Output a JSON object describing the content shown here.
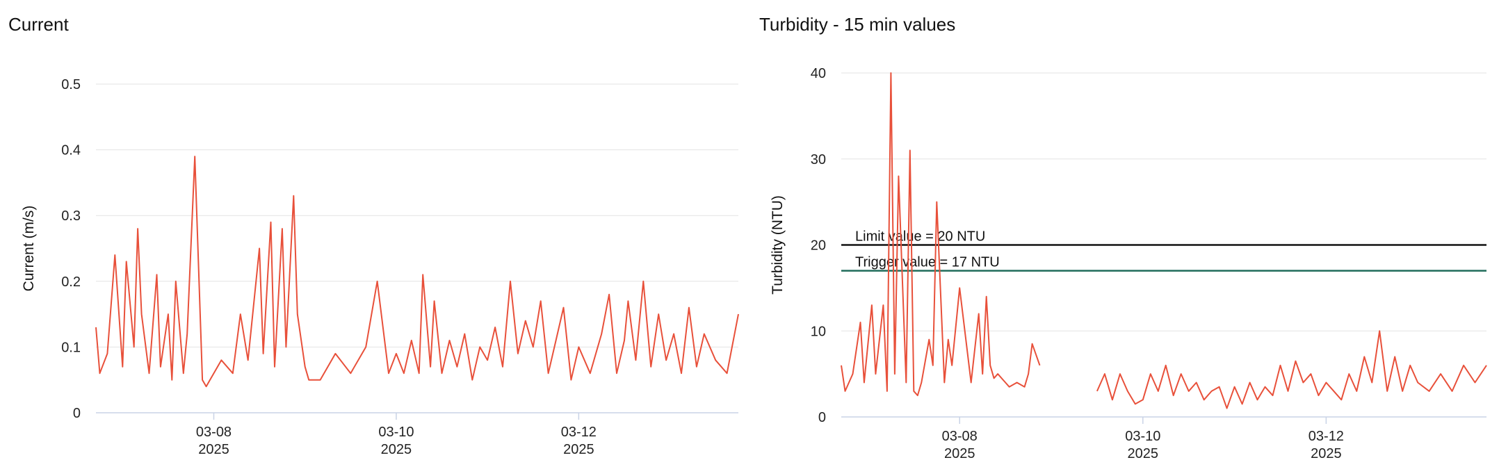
{
  "chart_data": [
    {
      "type": "line",
      "title": "Current",
      "xlabel": "",
      "ylabel": "Current (m/s)",
      "ylim": [
        0,
        0.5
      ],
      "yticks": [
        "0",
        "0.1",
        "0.2",
        "0.3",
        "0.4",
        "0.5"
      ],
      "xlim": [
        "2025-03-06 17:00",
        "2025-03-13 18:00"
      ],
      "xticks": [
        {
          "date": "2025-03-08",
          "label": "03-08",
          "year": "2025"
        },
        {
          "date": "2025-03-10",
          "label": "03-10",
          "year": "2025"
        },
        {
          "date": "2025-03-12",
          "label": "03-12",
          "year": "2025"
        }
      ],
      "grid": true,
      "colors": {
        "line": "#e8503a",
        "grid": "#e3e3e3"
      },
      "series": [
        {
          "x": [
            "2025-03-06 17:00",
            "2025-03-06 18:00",
            "2025-03-06 20:00",
            "2025-03-06 22:00",
            "2025-03-07 00:00",
            "2025-03-07 01:00",
            "2025-03-07 03:00",
            "2025-03-07 04:00",
            "2025-03-07 05:00",
            "2025-03-07 07:00",
            "2025-03-07 09:00",
            "2025-03-07 10:00",
            "2025-03-07 12:00",
            "2025-03-07 13:00",
            "2025-03-07 14:00",
            "2025-03-07 16:00",
            "2025-03-07 17:00",
            "2025-03-07 19:00",
            "2025-03-07 21:00",
            "2025-03-07 22:00",
            "2025-03-07 23:00",
            "2025-03-08 02:00",
            "2025-03-08 05:00",
            "2025-03-08 07:00",
            "2025-03-08 09:00",
            "2025-03-08 12:00",
            "2025-03-08 13:00",
            "2025-03-08 15:00",
            "2025-03-08 16:00",
            "2025-03-08 18:00",
            "2025-03-08 19:00",
            "2025-03-08 21:00",
            "2025-03-08 22:00",
            "2025-03-09 00:00",
            "2025-03-09 01:00",
            "2025-03-09 04:00",
            "2025-03-09 08:00",
            "2025-03-09 12:00",
            "2025-03-09 16:00",
            "2025-03-09 19:00",
            "2025-03-09 22:00",
            "2025-03-10 00:00",
            "2025-03-10 02:00",
            "2025-03-10 04:00",
            "2025-03-10 06:00",
            "2025-03-10 07:00",
            "2025-03-10 09:00",
            "2025-03-10 10:00",
            "2025-03-10 12:00",
            "2025-03-10 14:00",
            "2025-03-10 16:00",
            "2025-03-10 18:00",
            "2025-03-10 20:00",
            "2025-03-10 22:00",
            "2025-03-11 00:00",
            "2025-03-11 02:00",
            "2025-03-11 04:00",
            "2025-03-11 06:00",
            "2025-03-11 08:00",
            "2025-03-11 10:00",
            "2025-03-11 12:00",
            "2025-03-11 14:00",
            "2025-03-11 16:00",
            "2025-03-11 18:00",
            "2025-03-11 20:00",
            "2025-03-11 22:00",
            "2025-03-12 00:00",
            "2025-03-12 03:00",
            "2025-03-12 06:00",
            "2025-03-12 08:00",
            "2025-03-12 10:00",
            "2025-03-12 12:00",
            "2025-03-12 13:00",
            "2025-03-12 15:00",
            "2025-03-12 17:00",
            "2025-03-12 19:00",
            "2025-03-12 21:00",
            "2025-03-12 23:00",
            "2025-03-13 01:00",
            "2025-03-13 03:00",
            "2025-03-13 05:00",
            "2025-03-13 07:00",
            "2025-03-13 09:00",
            "2025-03-13 12:00",
            "2025-03-13 15:00",
            "2025-03-13 18:00"
          ],
          "y": [
            0.13,
            0.06,
            0.09,
            0.24,
            0.07,
            0.23,
            0.1,
            0.28,
            0.15,
            0.06,
            0.21,
            0.07,
            0.15,
            0.05,
            0.2,
            0.06,
            0.12,
            0.39,
            0.05,
            0.04,
            0.05,
            0.08,
            0.06,
            0.15,
            0.08,
            0.25,
            0.09,
            0.29,
            0.07,
            0.28,
            0.1,
            0.33,
            0.15,
            0.07,
            0.05,
            0.05,
            0.09,
            0.06,
            0.1,
            0.2,
            0.06,
            0.09,
            0.06,
            0.11,
            0.06,
            0.21,
            0.07,
            0.17,
            0.06,
            0.11,
            0.07,
            0.12,
            0.05,
            0.1,
            0.08,
            0.13,
            0.07,
            0.2,
            0.09,
            0.14,
            0.1,
            0.17,
            0.06,
            0.11,
            0.16,
            0.05,
            0.1,
            0.06,
            0.12,
            0.18,
            0.06,
            0.11,
            0.17,
            0.08,
            0.2,
            0.07,
            0.15,
            0.08,
            0.12,
            0.06,
            0.16,
            0.07,
            0.12,
            0.08,
            0.06,
            0.15
          ]
        }
      ]
    },
    {
      "type": "line",
      "title": "Turbidity - 15 min values",
      "xlabel": "",
      "ylabel": "Turbidity (NTU)",
      "ylim": [
        0,
        40
      ],
      "yticks": [
        "0",
        "10",
        "20",
        "30",
        "40"
      ],
      "xlim": [
        "2025-03-06 17:00",
        "2025-03-13 18:00"
      ],
      "xticks": [
        {
          "date": "2025-03-08",
          "label": "03-08",
          "year": "2025"
        },
        {
          "date": "2025-03-10",
          "label": "03-10",
          "year": "2025"
        },
        {
          "date": "2025-03-12",
          "label": "03-12",
          "year": "2025"
        }
      ],
      "grid": true,
      "colors": {
        "line": "#e8503a",
        "grid": "#e3e3e3",
        "limit": "#111111",
        "trigger": "#1f6b5a"
      },
      "reference_lines": [
        {
          "label": "Limit value = 20 NTU",
          "value": 20,
          "color": "#111111"
        },
        {
          "label": "Trigger value = 17 NTU",
          "value": 17,
          "color": "#1f6b5a"
        }
      ],
      "series": [
        {
          "segments": [
            {
              "x": [
                "2025-03-06 17:00",
                "2025-03-06 18:00",
                "2025-03-06 20:00",
                "2025-03-06 22:00",
                "2025-03-06 23:00",
                "2025-03-07 01:00",
                "2025-03-07 02:00",
                "2025-03-07 04:00",
                "2025-03-07 05:00",
                "2025-03-07 06:00",
                "2025-03-07 07:00",
                "2025-03-07 08:00",
                "2025-03-07 10:00",
                "2025-03-07 11:00",
                "2025-03-07 12:00",
                "2025-03-07 13:00",
                "2025-03-07 14:00",
                "2025-03-07 16:00",
                "2025-03-07 17:00",
                "2025-03-07 18:00",
                "2025-03-07 20:00",
                "2025-03-07 21:00",
                "2025-03-07 22:00",
                "2025-03-08 00:00",
                "2025-03-08 03:00",
                "2025-03-08 05:00",
                "2025-03-08 06:00",
                "2025-03-08 07:00",
                "2025-03-08 08:00",
                "2025-03-08 09:00",
                "2025-03-08 10:00",
                "2025-03-08 12:00",
                "2025-03-08 13:00",
                "2025-03-08 15:00",
                "2025-03-08 17:00",
                "2025-03-08 18:00",
                "2025-03-08 19:00",
                "2025-03-08 21:00",
                "2025-03-09 00:00",
                "2025-03-09 04:00",
                "2025-03-09 06:00",
                "2025-03-09 08:00",
                "2025-03-09 09:00",
                "2025-03-09 10:00"
              ],
              "y": [
                6,
                3,
                5,
                11,
                4,
                13,
                5,
                13,
                3,
                40,
                5,
                28,
                4,
                31,
                3,
                2.5,
                4,
                9,
                6,
                25,
                4,
                9,
                6,
                15,
                4,
                12,
                5,
                14,
                6,
                4.5,
                5,
                4,
                3.5,
                4,
                3.5,
                5,
                8.5,
                6,
                null,
                null,
                null,
                null,
                null,
                null
              ]
            },
            {
              "x": [
                "2025-03-09 12:00",
                "2025-03-09 14:00",
                "2025-03-09 16:00",
                "2025-03-09 18:00",
                "2025-03-09 20:00",
                "2025-03-09 22:00",
                "2025-03-10 00:00",
                "2025-03-10 02:00",
                "2025-03-10 04:00",
                "2025-03-10 06:00",
                "2025-03-10 08:00",
                "2025-03-10 10:00",
                "2025-03-10 12:00",
                "2025-03-10 14:00",
                "2025-03-10 16:00",
                "2025-03-10 18:00",
                "2025-03-10 20:00",
                "2025-03-10 22:00",
                "2025-03-11 00:00",
                "2025-03-11 02:00",
                "2025-03-11 04:00",
                "2025-03-11 06:00",
                "2025-03-11 08:00",
                "2025-03-11 10:00",
                "2025-03-11 12:00",
                "2025-03-11 14:00",
                "2025-03-11 16:00",
                "2025-03-11 18:00",
                "2025-03-11 20:00",
                "2025-03-11 22:00",
                "2025-03-12 00:00",
                "2025-03-12 02:00",
                "2025-03-12 04:00",
                "2025-03-12 06:00",
                "2025-03-12 08:00",
                "2025-03-12 10:00",
                "2025-03-12 12:00",
                "2025-03-12 14:00",
                "2025-03-12 16:00",
                "2025-03-12 18:00",
                "2025-03-12 20:00",
                "2025-03-12 22:00",
                "2025-03-13 00:00",
                "2025-03-13 03:00",
                "2025-03-13 06:00",
                "2025-03-13 09:00",
                "2025-03-13 12:00",
                "2025-03-13 15:00",
                "2025-03-13 18:00"
              ],
              "y": [
                3,
                5,
                2,
                5,
                3,
                1.5,
                2,
                5,
                3,
                6,
                2.5,
                5,
                3,
                4,
                2,
                3,
                3.5,
                1,
                3.5,
                1.5,
                4,
                2,
                3.5,
                2.5,
                6,
                3,
                6.5,
                4,
                5,
                2.5,
                4,
                3,
                2,
                5,
                3,
                7,
                4,
                10,
                3,
                7,
                3,
                6,
                4,
                3,
                5,
                3,
                6,
                4,
                6
              ]
            }
          ]
        }
      ]
    }
  ]
}
